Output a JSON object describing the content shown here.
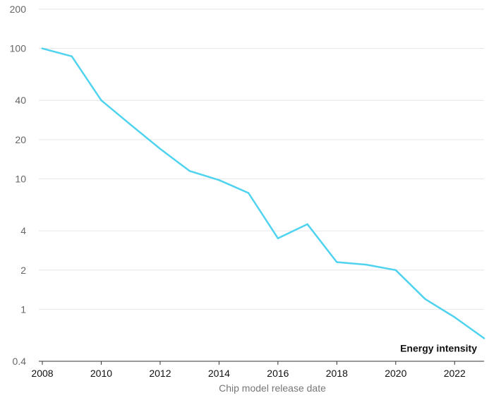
{
  "chart_data": {
    "type": "line",
    "title": "",
    "xlabel": "Chip model release date",
    "ylabel": "",
    "y_scale": "log",
    "ylim": [
      0.4,
      200
    ],
    "xlim": [
      2008,
      2023
    ],
    "y_ticks": [
      {
        "value": 200,
        "label": "200"
      },
      {
        "value": 100,
        "label": "100"
      },
      {
        "value": 40,
        "label": "40"
      },
      {
        "value": 20,
        "label": "20"
      },
      {
        "value": 10,
        "label": "10"
      },
      {
        "value": 4,
        "label": "4"
      },
      {
        "value": 2,
        "label": "2"
      },
      {
        "value": 1,
        "label": "1"
      },
      {
        "value": 0.4,
        "label": "0.4"
      }
    ],
    "x_ticks": [
      {
        "value": 2008,
        "label": "2008"
      },
      {
        "value": 2010,
        "label": "2010"
      },
      {
        "value": 2012,
        "label": "2012"
      },
      {
        "value": 2014,
        "label": "2014"
      },
      {
        "value": 2016,
        "label": "2016"
      },
      {
        "value": 2018,
        "label": "2018"
      },
      {
        "value": 2020,
        "label": "2020"
      },
      {
        "value": 2022,
        "label": "2022"
      }
    ],
    "grid": true,
    "series": [
      {
        "name": "Energy intensity",
        "color": "#4fd3ef",
        "x": [
          2008,
          2009,
          2010,
          2011,
          2012,
          2013,
          2014,
          2015,
          2016,
          2017,
          2018,
          2019,
          2020,
          2021,
          2022,
          2023
        ],
        "values": [
          100,
          87,
          40,
          26,
          17,
          11.5,
          9.8,
          7.8,
          3.5,
          4.5,
          2.3,
          2.2,
          2.0,
          1.2,
          0.87,
          0.6
        ]
      }
    ]
  }
}
